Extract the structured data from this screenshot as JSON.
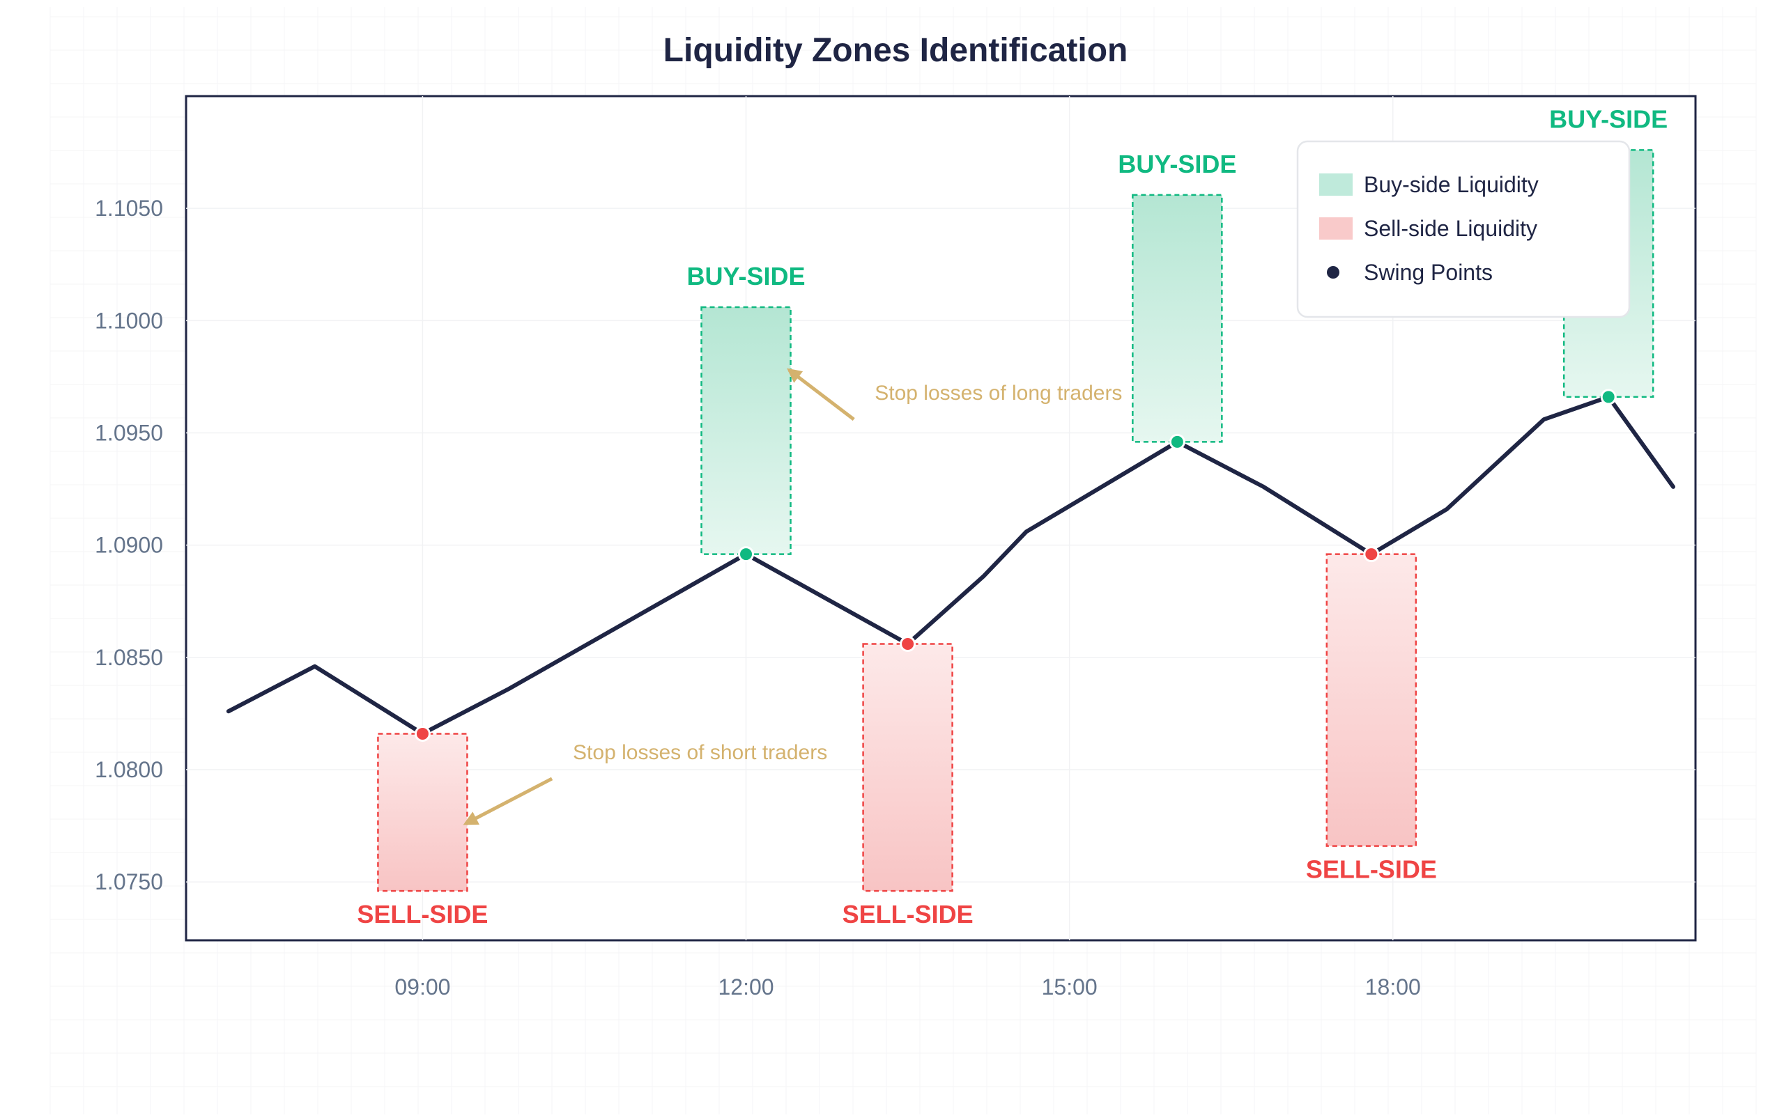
{
  "chart_data": {
    "type": "line",
    "title": "Liquidity Zones Identification",
    "xlabel": "",
    "ylabel": "",
    "ylim": [
      1.0724,
      1.11
    ],
    "grid": true,
    "legend_position": "top-right",
    "x_ticks": [
      {
        "x": 2,
        "label": "09:00"
      },
      {
        "x": 5,
        "label": "12:00"
      },
      {
        "x": 8,
        "label": "15:00"
      },
      {
        "x": 11,
        "label": "18:00"
      }
    ],
    "y_ticks": [
      {
        "value": 1.075,
        "label": "1.0750"
      },
      {
        "value": 1.08,
        "label": "1.0800"
      },
      {
        "value": 1.085,
        "label": "1.0850"
      },
      {
        "value": 1.09,
        "label": "1.0900"
      },
      {
        "value": 1.095,
        "label": "1.0950"
      },
      {
        "value": 1.1,
        "label": "1.1000"
      },
      {
        "value": 1.105,
        "label": "1.1050"
      }
    ],
    "xlim": [
      0,
      13.6
    ],
    "series": [
      {
        "values": [
          {
            "x": 0.2,
            "y": 1.0826
          },
          {
            "x": 1.0,
            "y": 1.0846
          },
          {
            "x": 2.0,
            "y": 1.0816
          },
          {
            "x": 2.8,
            "y": 1.0836
          },
          {
            "x": 5.0,
            "y": 1.0896
          },
          {
            "x": 6.5,
            "y": 1.0856
          },
          {
            "x": 7.2,
            "y": 1.0886
          },
          {
            "x": 7.6,
            "y": 1.0906
          },
          {
            "x": 9.0,
            "y": 1.0946
          },
          {
            "x": 9.8,
            "y": 1.0926
          },
          {
            "x": 10.8,
            "y": 1.0896
          },
          {
            "x": 11.5,
            "y": 1.0916
          },
          {
            "x": 12.4,
            "y": 1.0956
          },
          {
            "x": 13.0,
            "y": 1.0966
          },
          {
            "x": 13.6,
            "y": 1.0926
          }
        ]
      }
    ],
    "swing_points": [
      {
        "x": 2.0,
        "y": 1.0816,
        "kind": "sell"
      },
      {
        "x": 5.0,
        "y": 1.0896,
        "kind": "buy"
      },
      {
        "x": 6.5,
        "y": 1.0856,
        "kind": "sell"
      },
      {
        "x": 9.0,
        "y": 1.0946,
        "kind": "buy"
      },
      {
        "x": 10.8,
        "y": 1.0896,
        "kind": "sell"
      },
      {
        "x": 13.0,
        "y": 1.0966,
        "kind": "buy"
      }
    ],
    "zones": [
      {
        "kind": "sell",
        "x": 2.0,
        "y_low": 1.0746,
        "y_high": 1.0816,
        "label": "SELL-SIDE"
      },
      {
        "kind": "buy",
        "x": 5.0,
        "y_low": 1.0896,
        "y_high": 1.1006,
        "label": "BUY-SIDE"
      },
      {
        "kind": "sell",
        "x": 6.5,
        "y_low": 1.0746,
        "y_high": 1.0856,
        "label": "SELL-SIDE"
      },
      {
        "kind": "buy",
        "x": 9.0,
        "y_low": 1.0946,
        "y_high": 1.1056,
        "label": "BUY-SIDE"
      },
      {
        "kind": "sell",
        "x": 10.8,
        "y_low": 1.0766,
        "y_high": 1.0896,
        "label": "SELL-SIDE"
      },
      {
        "kind": "buy",
        "x": 13.0,
        "y_low": 1.0966,
        "y_high": 1.1076,
        "label": "BUY-SIDE"
      }
    ],
    "annotations": [
      {
        "text": "Stop losses of long traders",
        "target": {
          "x": 5.4,
          "y": 1.0978
        },
        "from": {
          "x": 6.0,
          "y": 1.0956
        }
      },
      {
        "text": "Stop losses of short traders",
        "target": {
          "x": 2.4,
          "y": 1.0776
        },
        "from": {
          "x": 3.2,
          "y": 1.0796
        }
      }
    ],
    "legend": [
      {
        "label": "Buy-side Liquidity",
        "kind": "buy-swatch"
      },
      {
        "label": "Sell-side Liquidity",
        "kind": "sell-swatch"
      },
      {
        "label": "Swing Points",
        "kind": "dot"
      }
    ]
  },
  "colors": {
    "line": "#1f2544",
    "buy": "#10b981",
    "buy_fill": "#bfeadb",
    "sell": "#ef4444",
    "sell_fill": "#f9caca",
    "annotation": "#d4b26e",
    "axis_text": "#64748b",
    "title": "#1f2544",
    "grid": "#f1f2f4"
  }
}
